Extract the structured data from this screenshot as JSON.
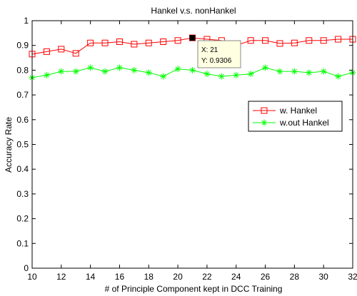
{
  "chart_data": {
    "type": "line",
    "title": "Hankel v.s. nonHankel",
    "xlabel": "# of Principle Component kept in DCC Training",
    "ylabel": "Accuracy Rate",
    "xlim": [
      10,
      32
    ],
    "ylim": [
      0,
      1
    ],
    "xticks": [
      10,
      12,
      14,
      16,
      18,
      20,
      22,
      24,
      26,
      28,
      30,
      32
    ],
    "yticks": [
      0,
      0.1,
      0.2,
      0.3,
      0.4,
      0.5,
      0.6,
      0.7,
      0.8,
      0.9,
      1
    ],
    "x": [
      10,
      11,
      12,
      13,
      14,
      15,
      16,
      17,
      18,
      19,
      20,
      21,
      22,
      23,
      24,
      25,
      26,
      27,
      28,
      29,
      30,
      31,
      32
    ],
    "series": [
      {
        "name": "w. Hankel",
        "color": "#ff0000",
        "marker": "square",
        "values": [
          0.865,
          0.875,
          0.885,
          0.868,
          0.91,
          0.91,
          0.915,
          0.905,
          0.91,
          0.915,
          0.92,
          0.9306,
          0.925,
          0.92,
          0.9,
          0.92,
          0.92,
          0.908,
          0.91,
          0.92,
          0.92,
          0.925,
          0.925
        ]
      },
      {
        "name": "w.out Hankel",
        "color": "#00ff00",
        "marker": "star",
        "values": [
          0.77,
          0.78,
          0.795,
          0.795,
          0.81,
          0.795,
          0.81,
          0.8,
          0.79,
          0.775,
          0.805,
          0.8,
          0.785,
          0.775,
          0.78,
          0.785,
          0.81,
          0.795,
          0.795,
          0.79,
          0.795,
          0.775,
          0.79
        ]
      }
    ],
    "legend": "right",
    "grid": false,
    "datatip": {
      "x_text": "X: 21",
      "y_text": "Y: 0.9306",
      "x": 21,
      "y": 0.9306
    }
  }
}
